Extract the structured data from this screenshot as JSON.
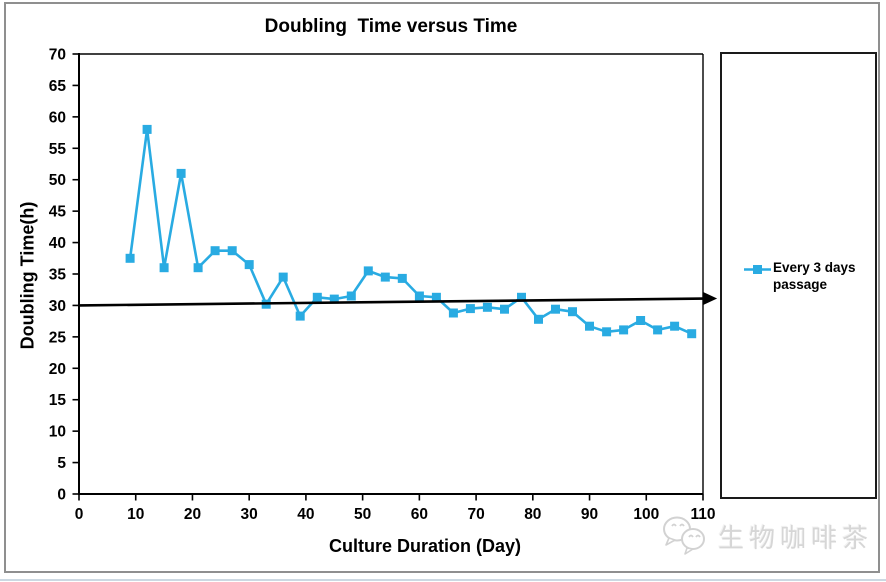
{
  "window": {
    "frame_border_color": "#8f8f8f",
    "bottom_strip_color": "#ccd8e2"
  },
  "chart_data": {
    "type": "line",
    "title": "Doubling  Time versus Time",
    "xlabel": "Culture Duration (Day)",
    "ylabel": "Doubling Time(h)",
    "xlim": [
      0,
      110
    ],
    "ylim": [
      0,
      70
    ],
    "x_ticks": [
      0,
      10,
      20,
      30,
      40,
      50,
      60,
      70,
      80,
      90,
      100,
      110
    ],
    "y_ticks": [
      0,
      5,
      10,
      15,
      20,
      25,
      30,
      35,
      40,
      45,
      50,
      55,
      60,
      65,
      70
    ],
    "grid": false,
    "legend_position": "right",
    "series": [
      {
        "name": "Every 3 days passage",
        "color": "#29ABE2",
        "marker": "square",
        "x": [
          9,
          12,
          15,
          18,
          21,
          24,
          27,
          30,
          33,
          36,
          39,
          42,
          45,
          48,
          51,
          54,
          57,
          60,
          63,
          66,
          69,
          72,
          75,
          78,
          81,
          84,
          87,
          90,
          93,
          96,
          99,
          102,
          105,
          108
        ],
        "y": [
          37.5,
          58,
          36,
          51,
          36,
          38.7,
          38.7,
          36.5,
          30.2,
          34.5,
          28.3,
          31.3,
          31,
          31.5,
          35.5,
          34.5,
          34.3,
          31.5,
          31.3,
          28.8,
          29.5,
          29.7,
          29.4,
          31.3,
          27.8,
          29.4,
          29,
          26.7,
          25.8,
          26.1,
          27.6,
          26.1,
          26.7,
          25.5
        ]
      }
    ],
    "annotations": [
      {
        "type": "arrow",
        "x1": 0,
        "y1": 30,
        "x2": 110.2,
        "y2": 31.1,
        "color": "#000000"
      }
    ]
  },
  "legend": {
    "line1": "Every 3 days",
    "line2": "passage",
    "marker_color": "#29ABE2"
  },
  "watermark": {
    "text": "生物咖啡茶",
    "icon": "wechat-icon"
  }
}
